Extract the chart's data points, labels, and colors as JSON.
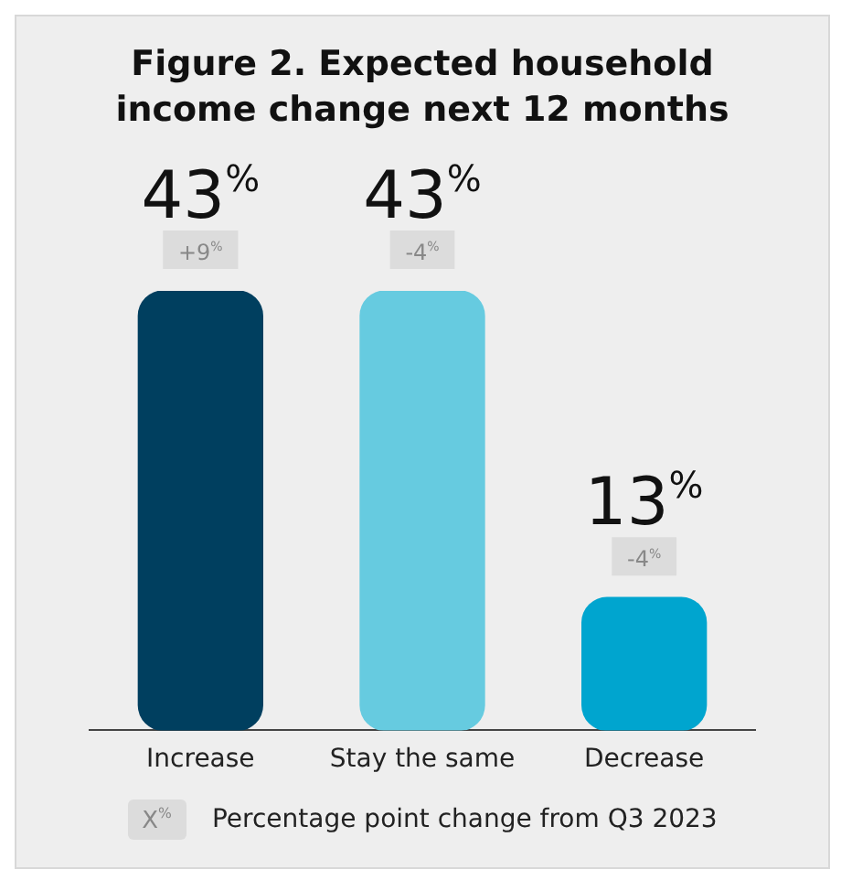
{
  "chart_data": {
    "type": "bar",
    "title": "Figure 2. Expected household income change next 12 months",
    "categories": [
      "Increase",
      "Stay the same",
      "Decrease"
    ],
    "values": [
      43,
      43,
      13
    ],
    "colors": [
      "#003f5f",
      "#66cbe0",
      "#00a5cf"
    ],
    "value_labels": [
      "43$^{%}$",
      "43$^{%}$",
      "13$^{%}$"
    ],
    "ylim": [
      0,
      43
    ],
    "tick_labels": "x",
    "grid": false,
    "legend": false,
    "annotations": [
      {
        "text": "+9$^{%}$",
        "x": "Increase",
        "y": 43
      },
      {
        "text": "-4$^{%}$",
        "x": "Stay the same",
        "y": 43
      },
      {
        "text": "-4$^{%}$",
        "x": "Decrease",
        "y": 13
      },
      "X$^{%}$",
      "Percentage point change from Q3 2023"
    ]
  }
}
